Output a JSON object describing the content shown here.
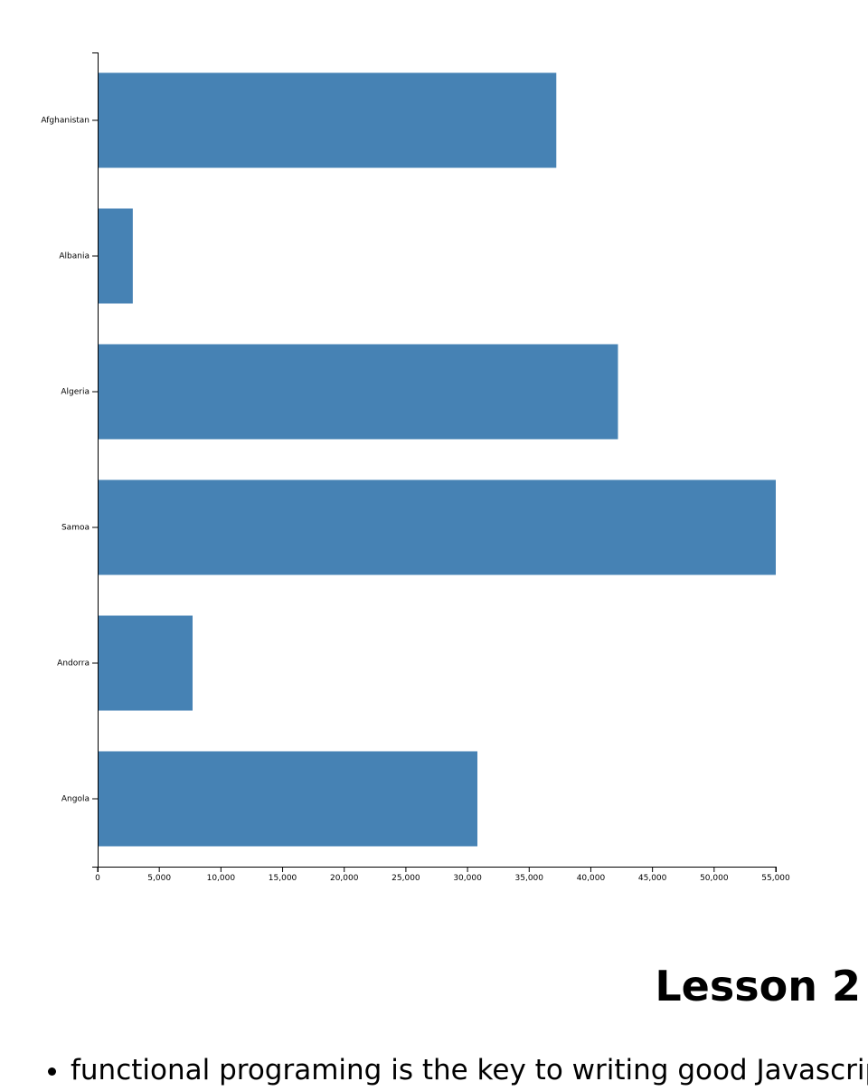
{
  "chart_data": {
    "type": "bar",
    "orientation": "horizontal",
    "categories": [
      "Afghanistan",
      "Albania",
      "Algeria",
      "Samoa",
      "Andorra",
      "Angola"
    ],
    "values": [
      37200,
      2850,
      42200,
      55000,
      7700,
      30800
    ],
    "xlim": [
      0,
      55000
    ],
    "xticks": [
      "0",
      "5,000",
      "10,000",
      "15,000",
      "20,000",
      "25,000",
      "30,000",
      "35,000",
      "40,000",
      "45,000",
      "50,000",
      "55,000"
    ],
    "xtick_values": [
      0,
      5000,
      10000,
      15000,
      20000,
      25000,
      30000,
      35000,
      40000,
      45000,
      50000,
      55000
    ],
    "bar_color": "#4682b4",
    "grid": false
  },
  "lesson": {
    "title": "Lesson 2",
    "items": [
      "functional programing is the key to writing good Javascript."
    ]
  }
}
